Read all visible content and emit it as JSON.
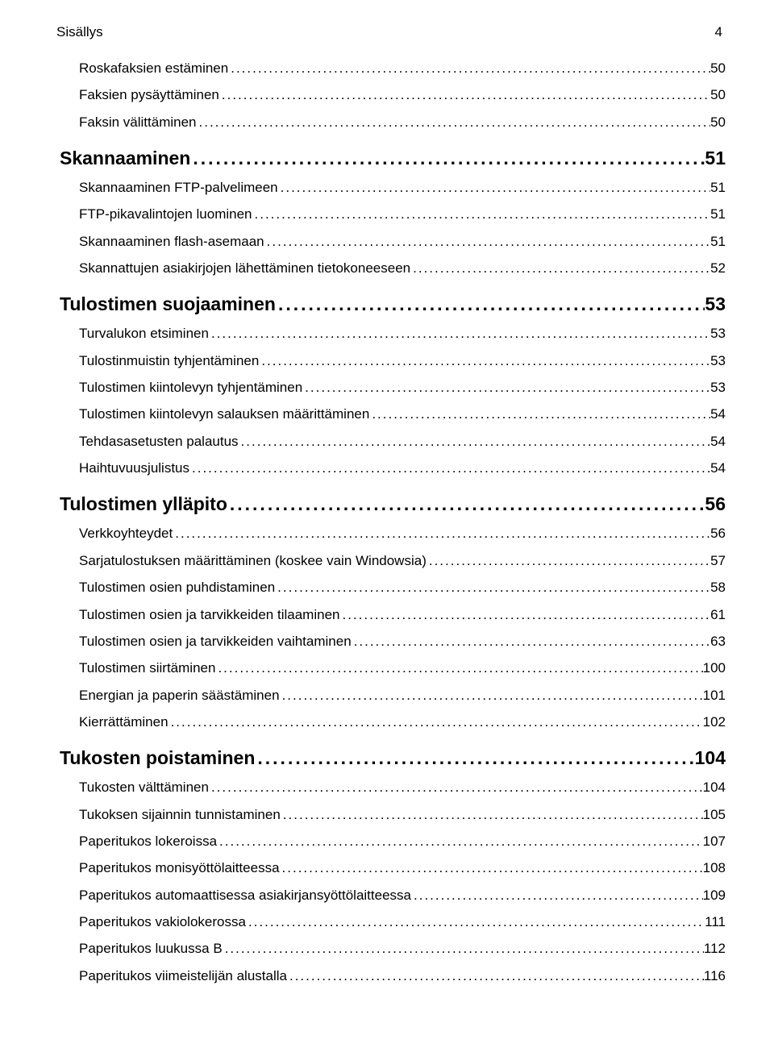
{
  "header": {
    "title": "Sisällys",
    "page": "4"
  },
  "toc": [
    {
      "level": 2,
      "label": "Roskafaksien estäminen",
      "page": "50"
    },
    {
      "level": 2,
      "label": "Faksien pysäyttäminen",
      "page": "50"
    },
    {
      "level": 2,
      "label": "Faksin välittäminen",
      "page": "50"
    },
    {
      "level": 1,
      "label": "Skannaaminen",
      "page": "51"
    },
    {
      "level": 2,
      "label": "Skannaaminen FTP-palvelimeen",
      "page": "51"
    },
    {
      "level": 2,
      "label": "FTP-pikavalintojen luominen",
      "page": "51"
    },
    {
      "level": 2,
      "label": "Skannaaminen flash-asemaan",
      "page": "51"
    },
    {
      "level": 2,
      "label": "Skannattujen asiakirjojen lähettäminen tietokoneeseen",
      "page": "52"
    },
    {
      "level": 1,
      "label": "Tulostimen suojaaminen",
      "page": "53"
    },
    {
      "level": 2,
      "label": "Turvalukon etsiminen",
      "page": "53"
    },
    {
      "level": 2,
      "label": "Tulostinmuistin tyhjentäminen",
      "page": "53"
    },
    {
      "level": 2,
      "label": "Tulostimen kiintolevyn tyhjentäminen",
      "page": "53"
    },
    {
      "level": 2,
      "label": "Tulostimen kiintolevyn salauksen määrittäminen",
      "page": "54"
    },
    {
      "level": 2,
      "label": "Tehdasasetusten palautus",
      "page": "54"
    },
    {
      "level": 2,
      "label": "Haihtuvuusjulistus",
      "page": "54"
    },
    {
      "level": 1,
      "label": "Tulostimen ylläpito",
      "page": "56"
    },
    {
      "level": 2,
      "label": "Verkkoyhteydet",
      "page": "56"
    },
    {
      "level": 2,
      "label": "Sarjatulostuksen määrittäminen (koskee vain Windowsia)",
      "page": "57"
    },
    {
      "level": 2,
      "label": "Tulostimen osien puhdistaminen",
      "page": "58"
    },
    {
      "level": 2,
      "label": "Tulostimen osien ja tarvikkeiden tilaaminen",
      "page": "61"
    },
    {
      "level": 2,
      "label": "Tulostimen osien ja tarvikkeiden vaihtaminen",
      "page": "63"
    },
    {
      "level": 2,
      "label": "Tulostimen siirtäminen",
      "page": "100"
    },
    {
      "level": 2,
      "label": "Energian ja paperin säästäminen",
      "page": "101"
    },
    {
      "level": 2,
      "label": "Kierrättäminen",
      "page": "102"
    },
    {
      "level": 1,
      "label": "Tukosten poistaminen",
      "page": "104"
    },
    {
      "level": 2,
      "label": "Tukosten välttäminen",
      "page": "104"
    },
    {
      "level": 2,
      "label": "Tukoksen sijainnin tunnistaminen",
      "page": "105"
    },
    {
      "level": 2,
      "label": "Paperitukos lokeroissa",
      "page": "107"
    },
    {
      "level": 2,
      "label": "Paperitukos monisyöttölaitteessa",
      "page": "108"
    },
    {
      "level": 2,
      "label": "Paperitukos automaattisessa asiakirjansyöttölaitteessa",
      "page": "109"
    },
    {
      "level": 2,
      "label": "Paperitukos vakiolokerossa",
      "page": "111"
    },
    {
      "level": 2,
      "label": "Paperitukos luukussa B",
      "page": "112"
    },
    {
      "level": 2,
      "label": "Paperitukos viimeistelijän alustalla",
      "page": "116"
    }
  ]
}
